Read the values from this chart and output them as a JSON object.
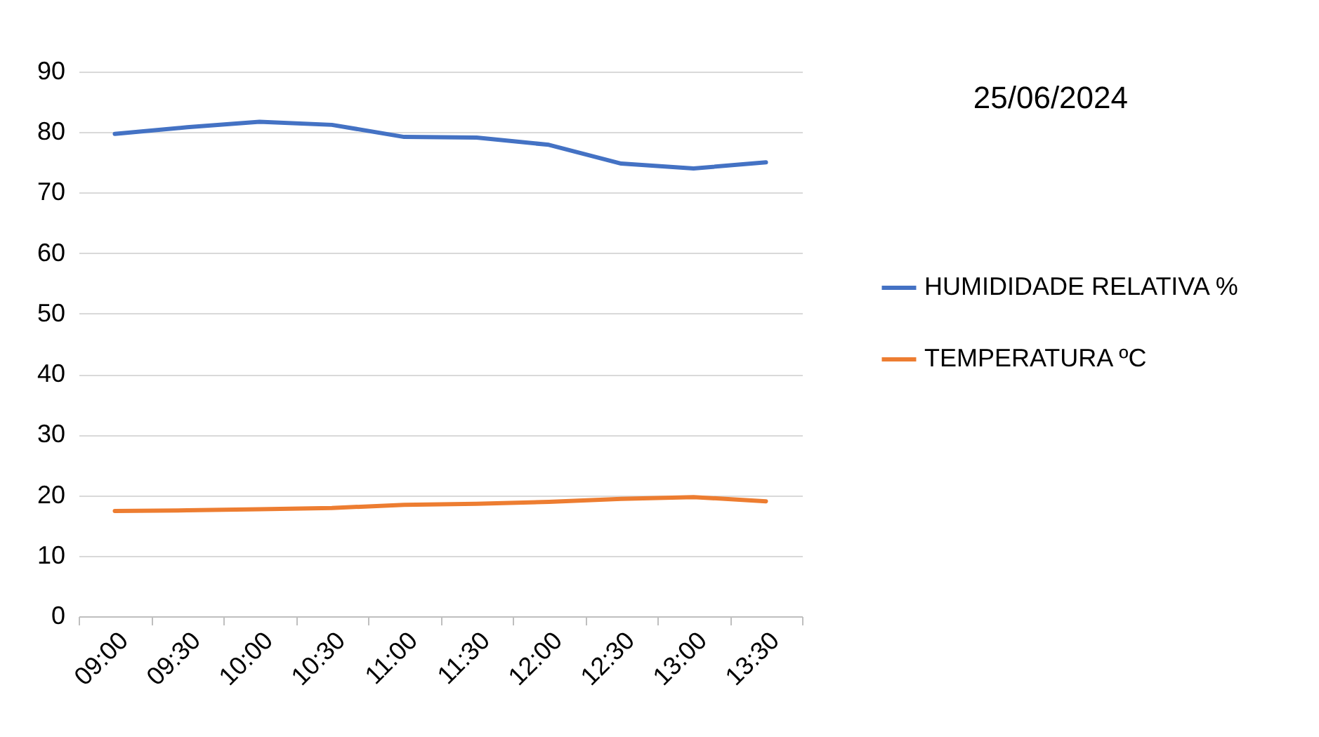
{
  "chart_data": {
    "type": "line",
    "title": "25/06/2024",
    "categories": [
      "09:00",
      "09:30",
      "10:00",
      "10:30",
      "11:00",
      "11:30",
      "12:00",
      "12:30",
      "13:00",
      "13:30"
    ],
    "series": [
      {
        "name": "HUMIDIDADE RELATIVA %",
        "color": "#4472c4",
        "values": [
          79.7,
          80.8,
          81.7,
          81.2,
          79.2,
          79.1,
          77.9,
          74.8,
          74.0,
          75.0
        ]
      },
      {
        "name": "TEMPERATURA ºC",
        "color": "#ed7d31",
        "values": [
          17.4,
          17.5,
          17.7,
          17.9,
          18.4,
          18.6,
          18.9,
          19.4,
          19.7,
          19.0
        ]
      }
    ],
    "ylim": [
      0,
      90
    ],
    "yticks": [
      0,
      10,
      20,
      30,
      40,
      50,
      60,
      70,
      80,
      90
    ],
    "grid": "y",
    "legend": "right",
    "marker": "none",
    "line_style": "solid"
  }
}
